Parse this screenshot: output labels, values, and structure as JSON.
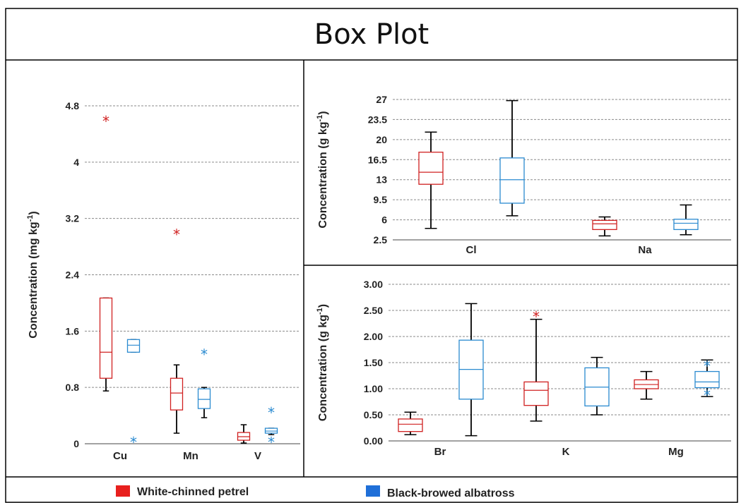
{
  "title": "Box Plot",
  "legend": [
    {
      "label": "White-chinned petrel",
      "color": "#e8201e"
    },
    {
      "label": "Black-browed albatross",
      "color": "#1f6fd8"
    }
  ],
  "colors": {
    "petrel_box": "#d02020",
    "albatross_box": "#2a8ad0",
    "whisker": "#000000"
  },
  "chart_data": [
    {
      "type": "box",
      "ylabel": "Concentration (mg kg-1)",
      "ylim": [
        0,
        4.8
      ],
      "ticks": [
        "0",
        "0.8",
        "1.6",
        "2.4",
        "3.2",
        "4",
        "4.8"
      ],
      "tick_values": [
        0,
        0.8,
        1.6,
        2.4,
        3.2,
        4.0,
        4.8
      ],
      "grid": true,
      "categories": [
        "Cu",
        "Mn",
        "V"
      ],
      "series": [
        {
          "name": "White-chinned petrel",
          "boxes": [
            {
              "min": 0.75,
              "q1": 0.93,
              "median": 1.3,
              "q3": 2.07,
              "max": 2.07,
              "outliers": [
                4.58
              ]
            },
            {
              "min": 0.15,
              "q1": 0.48,
              "median": 0.72,
              "q3": 0.93,
              "max": 1.12,
              "outliers": [
                2.97
              ]
            },
            {
              "min": 0.01,
              "q1": 0.05,
              "median": 0.1,
              "q3": 0.16,
              "max": 0.27,
              "outliers": []
            }
          ]
        },
        {
          "name": "Black-browed albatross",
          "boxes": [
            {
              "min": 1.3,
              "q1": 1.3,
              "median": 1.4,
              "q3": 1.48,
              "max": 1.48,
              "outliers": [
                0.02
              ]
            },
            {
              "min": 0.37,
              "q1": 0.5,
              "median": 0.63,
              "q3": 0.78,
              "max": 0.8,
              "outliers": [
                1.27
              ]
            },
            {
              "min": 0.13,
              "q1": 0.15,
              "median": 0.18,
              "q3": 0.22,
              "max": 0.22,
              "outliers": [
                0.44,
                0.02
              ]
            }
          ]
        }
      ]
    },
    {
      "type": "box",
      "ylabel": "Concentration (g kg-1)",
      "ylim": [
        2.5,
        27
      ],
      "ticks": [
        "2.5",
        "6",
        "9.5",
        "13",
        "16.5",
        "20",
        "23.5",
        "27"
      ],
      "tick_values": [
        2.5,
        6,
        9.5,
        13,
        16.5,
        20,
        23.5,
        27
      ],
      "grid": true,
      "categories": [
        "Cl",
        "Na"
      ],
      "series": [
        {
          "name": "White-chinned petrel",
          "boxes": [
            {
              "min": 4.5,
              "q1": 12.2,
              "median": 14.3,
              "q3": 17.8,
              "max": 21.3,
              "outliers": []
            },
            {
              "min": 3.2,
              "q1": 4.3,
              "median": 5.3,
              "q3": 5.9,
              "max": 6.5,
              "outliers": []
            }
          ]
        },
        {
          "name": "Black-browed albatross",
          "boxes": [
            {
              "min": 6.7,
              "q1": 8.9,
              "median": 13.0,
              "q3": 16.8,
              "max": 26.8,
              "outliers": []
            },
            {
              "min": 3.4,
              "q1": 4.3,
              "median": 5.4,
              "q3": 6.1,
              "max": 8.6,
              "outliers": []
            }
          ]
        }
      ]
    },
    {
      "type": "box",
      "ylabel": "Concentration (g kg-1)",
      "ylim": [
        0,
        3
      ],
      "ticks": [
        "0.00",
        "0.50",
        "1.00",
        "1.50",
        "2.00",
        "2.50",
        "3.00"
      ],
      "tick_values": [
        0,
        0.5,
        1.0,
        1.5,
        2.0,
        2.5,
        3.0
      ],
      "grid": true,
      "categories": [
        "Br",
        "K",
        "Mg"
      ],
      "series": [
        {
          "name": "White-chinned petrel",
          "boxes": [
            {
              "min": 0.12,
              "q1": 0.18,
              "median": 0.32,
              "q3": 0.42,
              "max": 0.55,
              "outliers": []
            },
            {
              "min": 0.38,
              "q1": 0.68,
              "median": 0.97,
              "q3": 1.13,
              "max": 2.33,
              "outliers": [
                2.38
              ]
            },
            {
              "min": 0.8,
              "q1": 1.0,
              "median": 1.08,
              "q3": 1.17,
              "max": 1.33,
              "outliers": []
            }
          ]
        },
        {
          "name": "Black-browed albatross",
          "boxes": [
            {
              "min": 0.1,
              "q1": 0.8,
              "median": 1.37,
              "q3": 1.93,
              "max": 2.63,
              "outliers": []
            },
            {
              "min": 0.5,
              "q1": 0.67,
              "median": 1.03,
              "q3": 1.4,
              "max": 1.6,
              "outliers": []
            },
            {
              "min": 0.85,
              "q1": 1.02,
              "median": 1.13,
              "q3": 1.33,
              "max": 1.55,
              "outliers": [
                0.87,
                1.43
              ]
            }
          ]
        }
      ]
    }
  ]
}
